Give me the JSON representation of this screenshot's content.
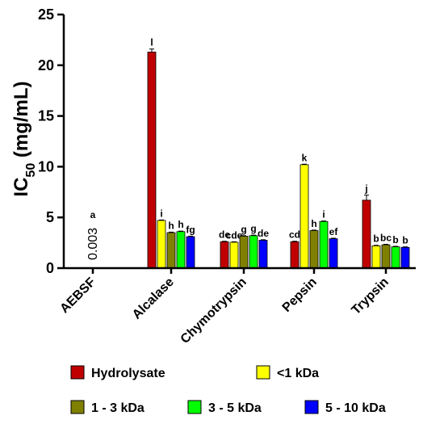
{
  "chart_data": {
    "type": "bar",
    "ylabel_main": "IC",
    "ylabel_sub": "50",
    "ylabel_unit": " (mg/mL)",
    "ylim": [
      0,
      25
    ],
    "yticks": [
      "0",
      "5",
      "10",
      "15",
      "20",
      "25"
    ],
    "categories": [
      "AEBSF",
      "Alcalase",
      "Chymotrypsin",
      "Pepsin",
      "Trypsin"
    ],
    "special_value_label": "0.003",
    "special_sig_label": "a",
    "series": [
      {
        "name": "Hydrolysate",
        "color": "#c00000",
        "values": [
          null,
          21.3,
          2.6,
          2.6,
          6.7
        ],
        "errors": [
          null,
          0.3,
          0.05,
          0.05,
          0.5
        ],
        "sig": [
          "",
          "l",
          "de",
          "cd",
          "j"
        ]
      },
      {
        "name": "<1 kDa",
        "color": "#ffff00",
        "values": [
          null,
          4.7,
          2.55,
          10.2,
          2.2
        ],
        "errors": [
          null,
          0.05,
          0.05,
          0.05,
          0.05
        ],
        "sig": [
          "",
          "i",
          "cde",
          "k",
          "b"
        ]
      },
      {
        "name": "1 - 3 kDa",
        "color": "#808000",
        "values": [
          null,
          3.5,
          3.15,
          3.7,
          2.3
        ],
        "errors": [
          null,
          0.05,
          0.05,
          0.05,
          0.05
        ],
        "sig": [
          "",
          "h",
          "g",
          "h",
          "bc"
        ]
      },
      {
        "name": "3 - 5 kDa",
        "color": "#00ff00",
        "values": [
          null,
          3.6,
          3.2,
          4.6,
          2.1
        ],
        "errors": [
          null,
          0.05,
          0.05,
          0.05,
          0.05
        ],
        "sig": [
          "",
          "h",
          "g",
          "i",
          "b"
        ]
      },
      {
        "name": "5 - 10 kDa",
        "color": "#0000ff",
        "values": [
          null,
          3.1,
          2.75,
          2.9,
          2.05
        ],
        "errors": [
          null,
          0.05,
          0.05,
          0.05,
          0.05
        ],
        "sig": [
          "",
          "fg",
          "de",
          "ef",
          "b"
        ]
      }
    ],
    "grid": false,
    "legend_position": "bottom"
  }
}
